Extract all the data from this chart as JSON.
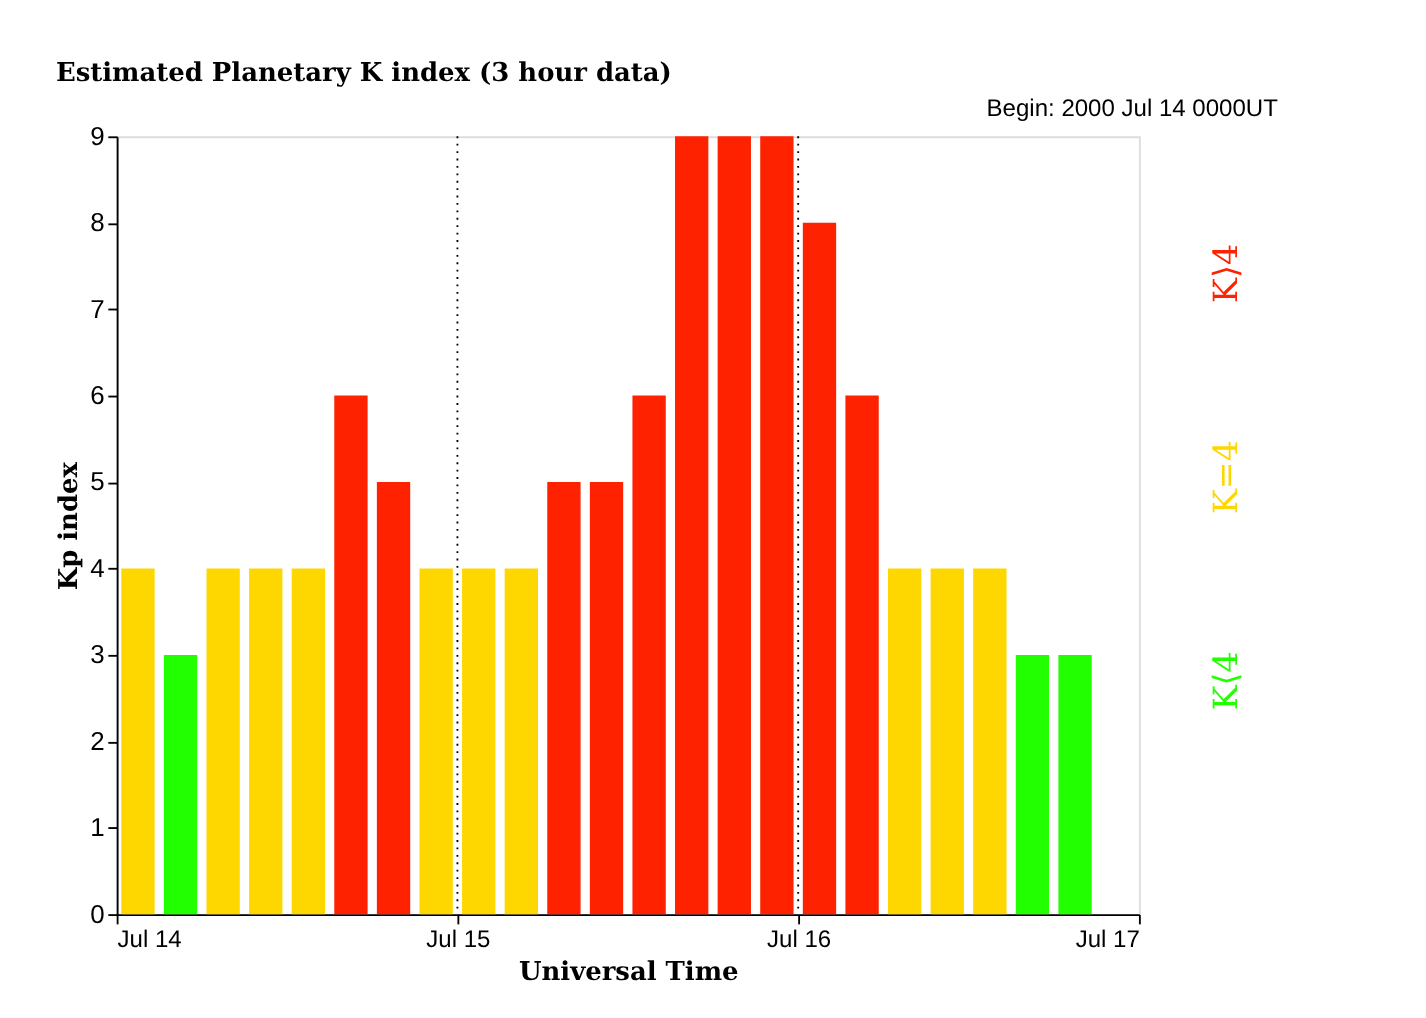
{
  "chart_data": {
    "type": "bar",
    "title": "Estimated Planetary K index (3 hour data)",
    "annotations": [
      "Begin:  2000 Jul 14 0000UT"
    ],
    "xlabel": "Universal Time",
    "ylabel": "Kp index",
    "x": [
      "2000-07-14T01:30",
      "2000-07-14T04:30",
      "2000-07-14T07:30",
      "2000-07-14T10:30",
      "2000-07-14T13:30",
      "2000-07-14T16:30",
      "2000-07-14T19:30",
      "2000-07-14T22:30",
      "2000-07-15T01:30",
      "2000-07-15T04:30",
      "2000-07-15T07:30",
      "2000-07-15T10:30",
      "2000-07-15T13:30",
      "2000-07-15T16:30",
      "2000-07-15T19:30",
      "2000-07-15T22:30",
      "2000-07-16T01:30",
      "2000-07-16T04:30",
      "2000-07-16T07:30",
      "2000-07-16T10:30",
      "2000-07-16T13:30",
      "2000-07-16T16:30",
      "2000-07-16T19:30"
    ],
    "series": [
      {
        "name": "K⟨4",
        "color": "#22ff00",
        "values": [
          null,
          3,
          null,
          null,
          null,
          null,
          null,
          null,
          null,
          null,
          null,
          null,
          null,
          null,
          null,
          null,
          null,
          null,
          null,
          null,
          null,
          3,
          3
        ]
      },
      {
        "name": "K=4",
        "color": "#ffd700",
        "values": [
          4,
          null,
          4,
          4,
          4,
          null,
          null,
          4,
          4,
          4,
          null,
          null,
          null,
          null,
          null,
          null,
          null,
          null,
          4,
          4,
          4,
          null,
          null
        ]
      },
      {
        "name": "K⟩4",
        "color": "#ff2200",
        "values": [
          null,
          null,
          null,
          null,
          null,
          6,
          5,
          null,
          null,
          null,
          5,
          5,
          6,
          9,
          9,
          9,
          8,
          6,
          null,
          null,
          null,
          null,
          null
        ]
      }
    ],
    "xlim": [
      "2000-07-14",
      "2000-07-17"
    ],
    "xticks": [
      {
        "value": "2000-07-14",
        "label": "Jul 14"
      },
      {
        "value": "2000-07-15",
        "label": "Jul 15"
      },
      {
        "value": "2000-07-16",
        "label": "Jul 16"
      },
      {
        "value": "2000-07-17",
        "label": "Jul 17"
      }
    ],
    "ylim": [
      0,
      9
    ],
    "yticks": [
      0,
      1,
      2,
      3,
      4,
      5,
      6,
      7,
      8,
      9
    ],
    "ref_lines": [
      {
        "axis": "x",
        "value": "2000-07-15",
        "color": "#000000",
        "line_style": "dotted"
      },
      {
        "axis": "x",
        "value": "2000-07-16",
        "color": "#000000",
        "line_style": "dotted"
      }
    ],
    "grid": false,
    "legend": "right"
  }
}
